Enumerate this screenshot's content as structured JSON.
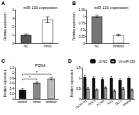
{
  "chart_data": [
    {
      "panel": "A",
      "type": "bar",
      "title": "miR-133 expression",
      "y_label": "Relative expression",
      "categories": [
        "NC",
        "mimic"
      ],
      "values": [
        1.0,
        2.8
      ],
      "errors": [
        0.1,
        0.35
      ],
      "colors": [
        "#555555",
        "#ffffff"
      ],
      "ylim": [
        0,
        4
      ],
      "yticks": [
        0,
        1,
        2,
        3,
        4
      ]
    },
    {
      "panel": "B",
      "type": "bar",
      "title": "miR-133 expression",
      "y_label": "Relative expression",
      "categories": [
        "NC",
        "inhibitor"
      ],
      "values": [
        1.0,
        0.3
      ],
      "errors": [
        0.05,
        0.03
      ],
      "colors": [
        "#777777",
        "#ffffff"
      ],
      "ylim": [
        0,
        1.25
      ],
      "yticks": [
        0,
        0.25,
        0.5,
        0.75,
        1,
        1.25
      ]
    },
    {
      "panel": "C",
      "type": "bar",
      "title": "PCNA",
      "y_label": "Relative expression",
      "categories": [
        "control",
        "mimic",
        "inhibitor"
      ],
      "values": [
        0.35,
        0.62,
        0.78
      ],
      "errors": [
        0.05,
        0.04,
        0.05
      ],
      "colors": [
        "#111111",
        "#888888",
        "#bbbbbb"
      ],
      "ylim": [
        0,
        1.2
      ],
      "yticks": [
        0,
        0.2,
        0.4,
        0.6,
        0.8,
        1,
        1.2
      ],
      "significance": [
        {
          "from": 0,
          "to": 1,
          "label": "*"
        },
        {
          "from": 0,
          "to": 2,
          "label": "*"
        }
      ]
    },
    {
      "panel": "D",
      "type": "bar",
      "y_label": "Relative expression",
      "categories": [
        "Cyclin D1",
        "CDK4",
        "PCNA",
        "Ki67",
        "Bcl-2",
        "MMP9"
      ],
      "series": [
        {
          "name": "LV-NC",
          "color": "#111111",
          "values": [
            1.05,
            1.0,
            0.95,
            1.0,
            0.9,
            1.0
          ],
          "errors": [
            0.08,
            0.07,
            0.06,
            0.08,
            0.07,
            0.06
          ]
        },
        {
          "name": "LV-miR-133",
          "color": "#999999",
          "values": [
            0.5,
            0.45,
            0.55,
            0.4,
            0.5,
            0.45
          ],
          "errors": [
            0.05,
            0.04,
            0.05,
            0.04,
            0.05,
            0.04
          ]
        }
      ],
      "ylim": [
        0,
        1.5
      ],
      "yticks": [
        0,
        0.5,
        1,
        1.5
      ],
      "legend": "top-right"
    }
  ]
}
